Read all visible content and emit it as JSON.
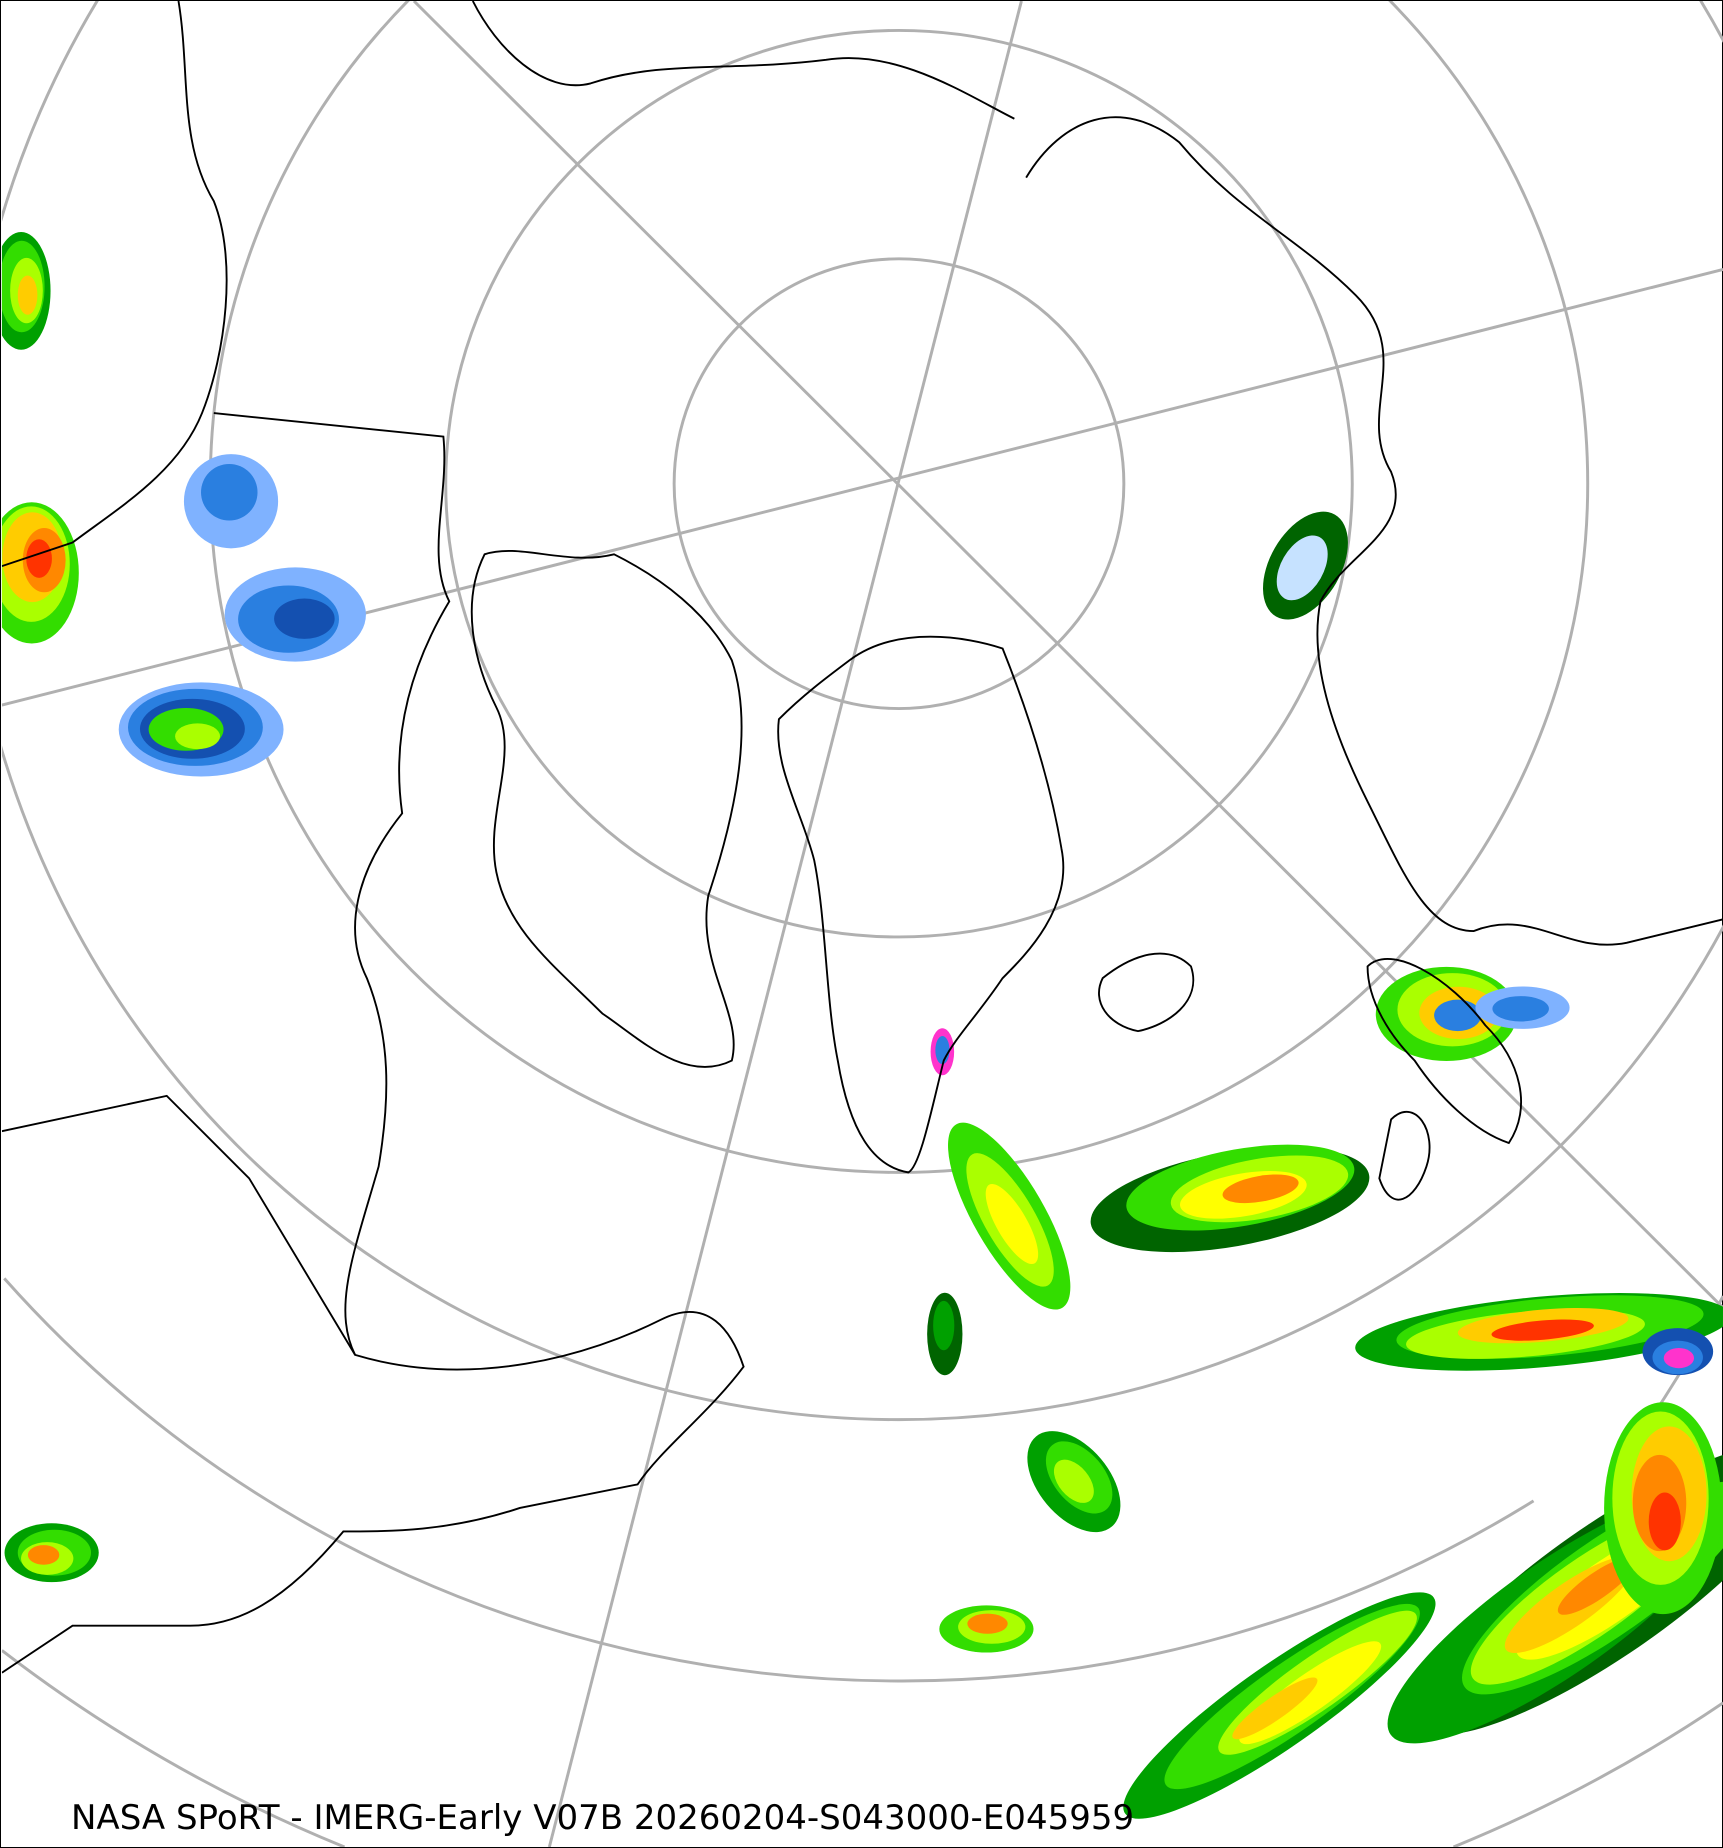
{
  "map": {
    "caption": "NASA SPoRT - IMERG-Early V07B 20260204-S043000-E045959",
    "projection": "north-polar-stereographic",
    "graticule_color": "#b0b0b0",
    "coastline_color": "#000000",
    "precip_colors": [
      "#c6e2ff",
      "#7fb2ff",
      "#2a7fe0",
      "#1450b0",
      "#006400",
      "#00a000",
      "#33dd00",
      "#aaff00",
      "#ffff00",
      "#ffcc00",
      "#ff8800",
      "#ff3300",
      "#ff33cc"
    ]
  }
}
